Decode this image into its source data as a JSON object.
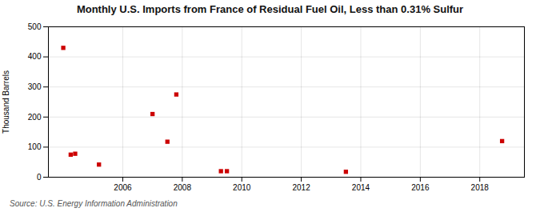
{
  "chart_data": {
    "type": "scatter",
    "title": "Monthly U.S. Imports from France of Residual Fuel Oil, Less than 0.31% Sulfur",
    "ylabel": "Thousand Barrels",
    "source": "Source: U.S. Energy Information Administration",
    "x": [
      2004.0,
      2004.25,
      2004.4,
      2005.2,
      2007.0,
      2007.5,
      2007.8,
      2009.3,
      2009.5,
      2013.5,
      2018.75
    ],
    "values": [
      430,
      75,
      78,
      42,
      210,
      118,
      275,
      20,
      20,
      18,
      120
    ],
    "color": "#cc0000",
    "marker": "square",
    "xlim": [
      2003.5,
      2019.5
    ],
    "ylim": [
      0,
      500
    ],
    "xticks": [
      2006,
      2008,
      2010,
      2012,
      2014,
      2016,
      2018
    ],
    "yticks": [
      0,
      100,
      200,
      300,
      400,
      500
    ],
    "grid": true
  }
}
